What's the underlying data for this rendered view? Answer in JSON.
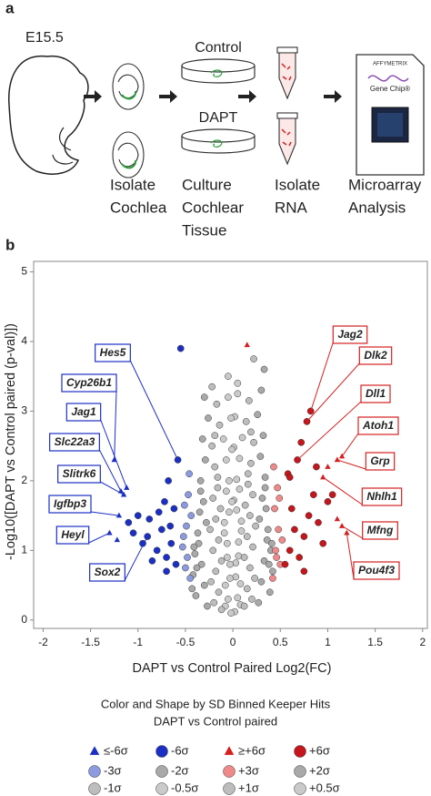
{
  "panel_a": {
    "label": "a",
    "stage": "E15.5",
    "conditions": [
      "Control",
      "DAPT"
    ],
    "chip_brand": "AFFYMETRIX",
    "chip_name": "Gene Chip®",
    "steps": [
      [
        "Isolate",
        "Cochlea"
      ],
      [
        "Culture",
        "Cochlear",
        "Tissue"
      ],
      [
        "Isolate",
        "RNA"
      ],
      [
        "Microarray",
        "Analysis"
      ]
    ]
  },
  "panel_b_label": "b",
  "chart_data": {
    "type": "scatter",
    "x_label": "DAPT vs Control Paired Log2(FC)",
    "y_label": "-Log10([DAPT vs Control paired (p-val)])",
    "xlim": [
      -2.1,
      2.05
    ],
    "ylim": [
      -0.12,
      5.15
    ],
    "xticks": [
      -2,
      -1.5,
      -1,
      -0.5,
      0,
      0.5,
      1,
      1.5,
      2
    ],
    "yticks": [
      0,
      1,
      2,
      3,
      4,
      5
    ],
    "legend_title": "Color and Shape by SD Binned Keeper Hits",
    "legend_subtitle": "DAPT vs Control paired",
    "series": [
      {
        "name": "≤-6σ",
        "color": "#1c2fc4",
        "marker": "triangle",
        "x": [
          -1.25,
          -1.18,
          -1.15,
          -1.2,
          -1.3,
          -1.22,
          -1.12
        ],
        "values": [
          2.3,
          1.85,
          1.8,
          1.5,
          1.25,
          1.15,
          1.9
        ]
      },
      {
        "name": "-6σ",
        "color": "#1c2fc4",
        "marker": "circle",
        "x": [
          -0.6,
          -0.65,
          -0.7,
          -0.75,
          -0.8,
          -0.9,
          -1.0,
          -1.1,
          -0.62,
          -0.68,
          -0.72,
          -0.85,
          -0.95,
          -1.05,
          -0.58,
          -0.66,
          -0.78,
          -0.55,
          -0.88,
          -0.7
        ],
        "values": [
          0.8,
          1.1,
          0.9,
          1.3,
          1.0,
          1.2,
          1.5,
          1.4,
          1.6,
          2.0,
          1.7,
          0.85,
          1.1,
          1.25,
          2.3,
          1.35,
          1.55,
          3.9,
          1.45,
          0.7
        ]
      },
      {
        "name": "≥+6σ",
        "color": "#d42020",
        "marker": "triangle",
        "x": [
          1.1,
          1.15,
          1.0,
          0.95,
          1.1,
          1.15,
          1.2,
          0.15
        ],
        "values": [
          2.3,
          2.35,
          2.2,
          2.05,
          1.45,
          1.35,
          1.25,
          3.95
        ]
      },
      {
        "name": "+6σ",
        "color": "#c4161b",
        "marker": "circle",
        "x": [
          0.55,
          0.6,
          0.65,
          0.7,
          0.75,
          0.8,
          0.85,
          0.9,
          1.0,
          1.05,
          0.58,
          0.62,
          0.68,
          0.72,
          0.78,
          0.82,
          0.88,
          0.95,
          0.75,
          0.6
        ],
        "values": [
          0.8,
          1.0,
          1.3,
          0.9,
          1.2,
          1.5,
          1.8,
          1.4,
          1.7,
          1.8,
          2.1,
          1.6,
          2.3,
          2.55,
          2.85,
          3.0,
          2.2,
          1.1,
          0.7,
          2.05
        ]
      },
      {
        "name": "-3σ",
        "color": "#8c9ae0",
        "marker": "circle",
        "x": [
          -0.45,
          -0.48,
          -0.52,
          -0.44,
          -0.5,
          -0.47,
          -0.53,
          -0.46,
          -0.49,
          -0.51
        ],
        "values": [
          0.6,
          0.9,
          1.2,
          1.5,
          0.75,
          1.8,
          1.05,
          2.1,
          1.35,
          1.65
        ]
      },
      {
        "name": "-2σ",
        "color": "#a9a9a9",
        "marker": "circle",
        "x": [
          -0.27,
          -0.3,
          -0.33,
          -0.36,
          -0.39,
          -0.42,
          -0.28,
          -0.31,
          -0.34,
          -0.37,
          -0.4,
          -0.43,
          -0.29,
          -0.32,
          -0.35,
          -0.38,
          -0.26,
          -0.3,
          -0.34,
          -0.41
        ],
        "values": [
          0.2,
          0.5,
          0.8,
          1.1,
          0.35,
          0.65,
          1.4,
          1.7,
          2.0,
          1.25,
          0.95,
          0.45,
          2.3,
          2.6,
          1.55,
          0.75,
          2.9,
          3.2,
          1.85,
          1.05
        ]
      },
      {
        "name": "+3σ",
        "color": "#f08a8a",
        "marker": "circle",
        "x": [
          0.42,
          0.45,
          0.48,
          0.5,
          0.44,
          0.47,
          0.52,
          0.43,
          0.49,
          0.46
        ],
        "values": [
          0.6,
          1.0,
          1.3,
          0.8,
          1.6,
          1.9,
          1.15,
          2.2,
          1.75,
          0.9
        ]
      },
      {
        "name": "+2σ",
        "color": "#a9a9a9",
        "marker": "circle",
        "x": [
          0.27,
          0.3,
          0.33,
          0.36,
          0.39,
          0.42,
          0.28,
          0.31,
          0.34,
          0.37,
          0.4,
          0.29,
          0.32,
          0.35,
          0.38,
          0.26,
          0.3,
          0.34,
          0.41,
          0.33
        ],
        "values": [
          0.25,
          0.55,
          0.85,
          1.15,
          0.4,
          0.7,
          1.45,
          1.75,
          2.05,
          1.3,
          1.0,
          2.35,
          2.65,
          1.6,
          0.8,
          2.95,
          3.3,
          1.9,
          1.1,
          3.6
        ]
      },
      {
        "name": "-1σ",
        "color": "#bdbdbd",
        "marker": "circle",
        "x": [
          -0.12,
          -0.15,
          -0.18,
          -0.21,
          -0.24,
          -0.13,
          -0.16,
          -0.19,
          -0.22,
          -0.14,
          -0.17,
          -0.2,
          -0.23,
          -0.12,
          -0.15,
          -0.18,
          -0.21,
          -0.16,
          -0.19,
          -0.22
        ],
        "values": [
          0.15,
          0.4,
          0.7,
          1.0,
          1.3,
          1.6,
          1.9,
          2.2,
          2.5,
          2.8,
          3.1,
          0.25,
          0.55,
          0.85,
          1.15,
          1.45,
          1.75,
          2.05,
          2.65,
          3.35
        ]
      },
      {
        "name": "-0.5σ",
        "color": "#cacaca",
        "marker": "circle",
        "x": [
          -0.02,
          -0.05,
          -0.08,
          -0.03,
          -0.06,
          -0.09,
          -0.01,
          -0.04,
          -0.07,
          -0.1,
          -0.02,
          -0.05,
          -0.08,
          -0.03,
          -0.06,
          -0.09,
          -0.04,
          -0.07,
          -0.01,
          -0.05
        ],
        "values": [
          0.1,
          0.3,
          0.5,
          0.8,
          1.1,
          1.4,
          1.7,
          2.0,
          2.3,
          2.6,
          2.9,
          3.2,
          0.2,
          0.6,
          0.9,
          1.25,
          1.55,
          1.85,
          2.45,
          3.5
        ]
      },
      {
        "name": "+1σ",
        "color": "#bdbdbd",
        "marker": "circle",
        "x": [
          0.12,
          0.15,
          0.18,
          0.21,
          0.24,
          0.13,
          0.16,
          0.19,
          0.22,
          0.14,
          0.17,
          0.2,
          0.23,
          0.12,
          0.15,
          0.18,
          0.21,
          0.16,
          0.19,
          0.22
        ],
        "values": [
          0.2,
          0.45,
          0.75,
          1.05,
          1.35,
          1.65,
          1.95,
          2.25,
          2.55,
          2.85,
          3.15,
          0.3,
          0.6,
          0.9,
          1.2,
          1.5,
          1.8,
          2.1,
          2.7,
          3.75
        ]
      },
      {
        "name": "+0.5σ",
        "color": "#cacaca",
        "marker": "circle",
        "x": [
          0.02,
          0.05,
          0.08,
          0.03,
          0.06,
          0.09,
          0.01,
          0.04,
          0.07,
          0.1,
          0.02,
          0.05,
          0.08,
          0.03,
          0.06,
          0.09,
          0.04,
          0.07,
          0.01,
          0.05
        ],
        "values": [
          0.12,
          0.32,
          0.52,
          0.82,
          1.12,
          1.42,
          1.72,
          2.02,
          2.32,
          2.62,
          2.92,
          3.25,
          0.22,
          0.62,
          0.92,
          1.28,
          1.58,
          1.88,
          2.48,
          3.4
        ]
      }
    ],
    "annotations": [
      "Hes5",
      "Cyp26b1",
      "Jag1",
      "Slc22a3",
      "Slitrk6",
      "Igfbp3",
      "Heyl",
      "Sox2",
      "Jag2",
      "Dlk2",
      "Dll1",
      "Atoh1",
      "Grp",
      "Nhlh1",
      "Mfng",
      "Pou4f3"
    ]
  }
}
